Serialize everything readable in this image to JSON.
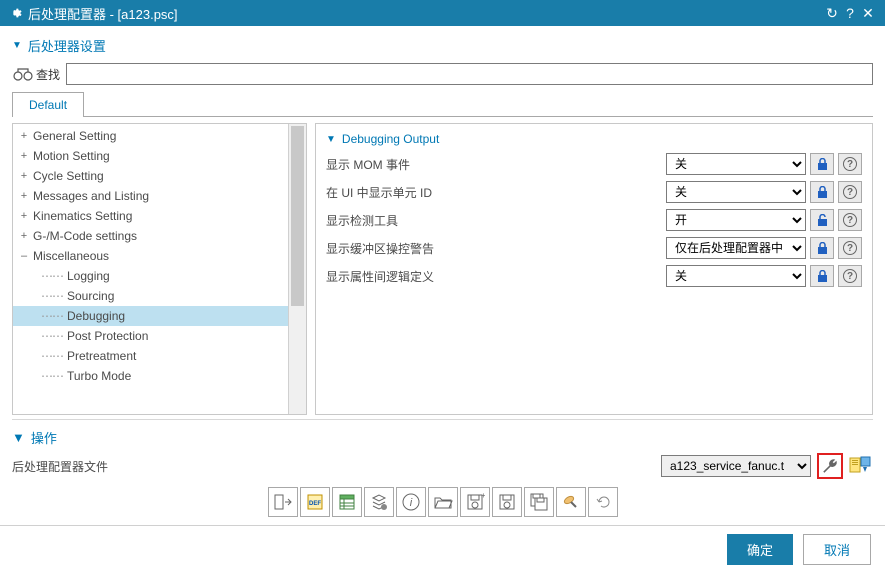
{
  "titlebar": {
    "title": "后处理配置器 - [a123.psc]"
  },
  "section1": {
    "title": "后处理器设置"
  },
  "find": {
    "label": "查找",
    "value": ""
  },
  "tabs": [
    {
      "label": "Default"
    }
  ],
  "tree": [
    {
      "label": "General Setting",
      "expander": "+",
      "child": false
    },
    {
      "label": "Motion Setting",
      "expander": "+",
      "child": false
    },
    {
      "label": "Cycle Setting",
      "expander": "+",
      "child": false
    },
    {
      "label": "Messages and Listing",
      "expander": "+",
      "child": false
    },
    {
      "label": "Kinematics Setting",
      "expander": "+",
      "child": false
    },
    {
      "label": "G-/M-Code settings",
      "expander": "+",
      "child": false
    },
    {
      "label": "Miscellaneous",
      "expander": "–",
      "child": false
    },
    {
      "label": "Logging",
      "child": true
    },
    {
      "label": "Sourcing",
      "child": true
    },
    {
      "label": "Debugging",
      "child": true,
      "selected": true
    },
    {
      "label": "Post Protection",
      "child": true
    },
    {
      "label": "Pretreatment",
      "child": true
    },
    {
      "label": "Turbo Mode",
      "child": true
    }
  ],
  "group": {
    "title": "Debugging Output"
  },
  "props": [
    {
      "label": "显示 MOM 事件",
      "value": "关",
      "locked": true
    },
    {
      "label": "在 UI 中显示单元 ID",
      "value": "关",
      "locked": true
    },
    {
      "label": "显示检测工具",
      "value": "开",
      "locked": false
    },
    {
      "label": "显示缓冲区操控警告",
      "value": "仅在后处理配置器中",
      "locked": true
    },
    {
      "label": "显示属性间逻辑定义",
      "value": "关",
      "locked": true
    }
  ],
  "ops": {
    "title": "操作",
    "file_label": "后处理配置器文件",
    "file_value": "a123_service_fanuc.t"
  },
  "footer": {
    "ok": "确定",
    "cancel": "取消"
  }
}
